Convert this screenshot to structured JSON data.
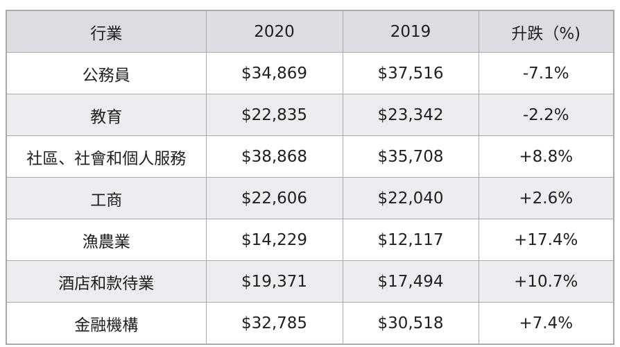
{
  "table": {
    "headers": [
      "行業",
      "2020",
      "2019",
      "升跌（%)"
    ],
    "rows": [
      [
        "公務員",
        "$34,869",
        "$37,516",
        "-7.1%"
      ],
      [
        "教育",
        "$22,835",
        "$23,342",
        "-2.2%"
      ],
      [
        "社區、社會和個人服務",
        "$38,868",
        "$35,708",
        "+8.8%"
      ],
      [
        "工商",
        "$22,606",
        "$22,040",
        "+2.6%"
      ],
      [
        "漁農業",
        "$14,229",
        "$12,117",
        "+17.4%"
      ],
      [
        "酒店和款待業",
        "$19,371",
        "$17,494",
        "+10.7%"
      ],
      [
        "金融機構",
        "$32,785",
        "$30,518",
        "+7.4%"
      ]
    ]
  },
  "colors": {
    "header_bg": "#dcdce2",
    "stripe_bg": "#ececf1",
    "border": "#a9a9ad"
  }
}
